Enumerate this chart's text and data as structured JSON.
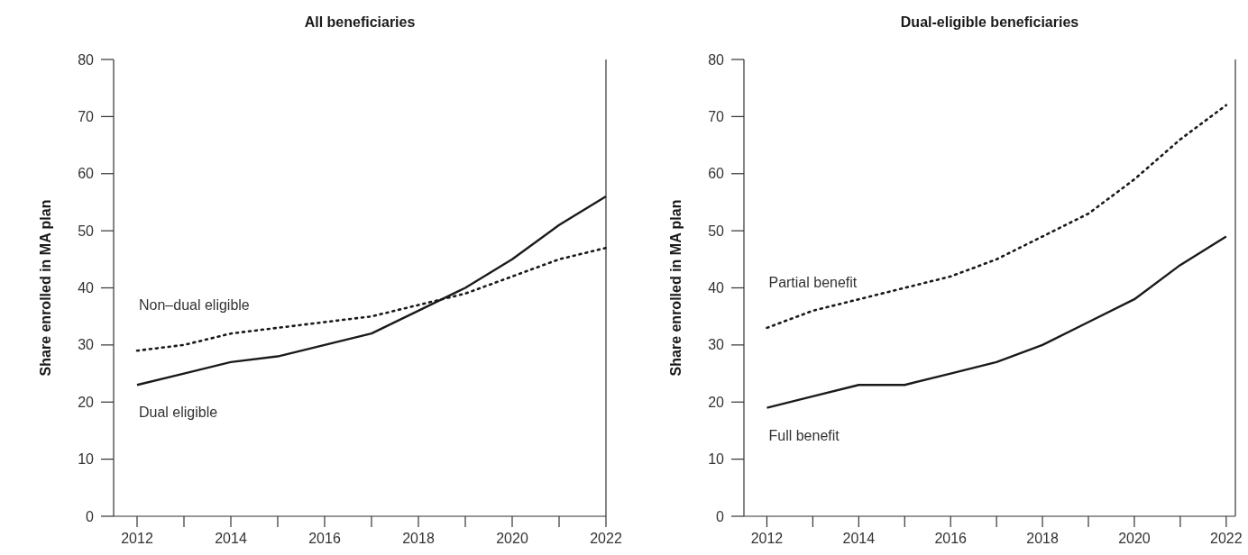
{
  "chart_data": [
    {
      "type": "line",
      "title": "All beneficiaries",
      "ylabel": "Share enrolled in MA plan",
      "x": [
        2012,
        2013,
        2014,
        2015,
        2016,
        2017,
        2018,
        2019,
        2020,
        2021,
        2022
      ],
      "xlim": [
        2011.5,
        2022
      ],
      "xticks": [
        2012,
        {
          "value": 2013,
          "label": null
        },
        2014,
        {
          "value": 2015,
          "label": null
        },
        2016,
        {
          "value": 2017,
          "label": null
        },
        2018,
        {
          "value": 2019,
          "label": null
        },
        2020,
        {
          "value": 2021,
          "label": null
        },
        2022
      ],
      "ylim": [
        0,
        80
      ],
      "yticks": [
        0,
        10,
        20,
        30,
        40,
        50,
        60,
        70,
        80
      ],
      "grid": false,
      "marker": "none",
      "series": [
        {
          "name": "Dual eligible",
          "color": "#1a1a1a",
          "line_style": "solid",
          "values": [
            23,
            25,
            27,
            28,
            30,
            32,
            36,
            40,
            45,
            51,
            56
          ]
        },
        {
          "name": "Non–dual eligible",
          "color": "#1a1a1a",
          "line_style": "dotted",
          "values": [
            29,
            30,
            32,
            33,
            34,
            35,
            37,
            39,
            42,
            45,
            47
          ]
        }
      ]
    },
    {
      "type": "line",
      "title": "Dual-eligible beneficiaries",
      "ylabel": "Share enrolled in MA plan",
      "x": [
        2012,
        2013,
        2014,
        2015,
        2016,
        2017,
        2018,
        2019,
        2020,
        2021,
        2022
      ],
      "xlim": [
        2011.5,
        2022.2
      ],
      "xticks": [
        2012,
        {
          "value": 2013,
          "label": null
        },
        2014,
        {
          "value": 2015,
          "label": null
        },
        2016,
        {
          "value": 2017,
          "label": null
        },
        2018,
        {
          "value": 2019,
          "label": null
        },
        2020,
        {
          "value": 2021,
          "label": null
        },
        2022
      ],
      "ylim": [
        0,
        80
      ],
      "yticks": [
        0,
        10,
        20,
        30,
        40,
        50,
        60,
        70,
        80
      ],
      "grid": false,
      "marker": "none",
      "series": [
        {
          "name": "Full benefit",
          "color": "#1a1a1a",
          "line_style": "solid",
          "values": [
            19,
            21,
            23,
            23,
            25,
            27,
            30,
            34,
            38,
            44,
            49
          ]
        },
        {
          "name": "Partial benefit",
          "color": "#1a1a1a",
          "line_style": "dotted",
          "values": [
            33,
            36,
            38,
            40,
            42,
            45,
            49,
            53,
            59,
            66,
            72
          ]
        }
      ]
    }
  ]
}
